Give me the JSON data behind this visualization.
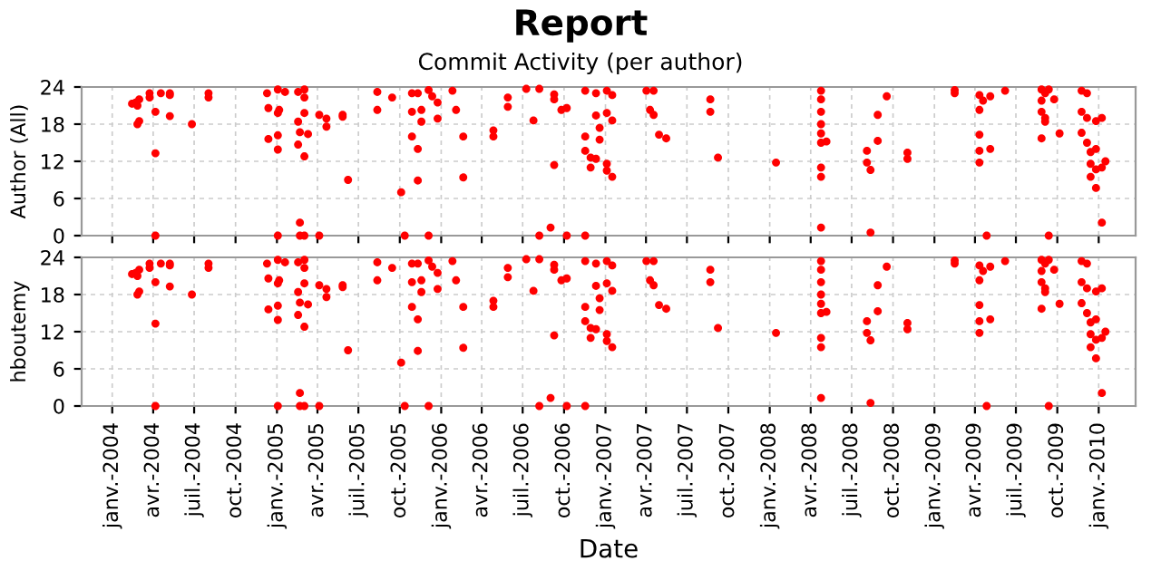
{
  "chart_data": [
    {
      "type": "scatter",
      "title": "Report",
      "subtitle": "Commit Activity (per author)",
      "ylabel": "Author (All)",
      "tick_labels": "y",
      "grid": true,
      "marker": "circle",
      "xlim": [
        "2003-10-25",
        "2010-03-24"
      ],
      "ylim": [
        0,
        24
      ],
      "yticks": [
        0,
        6,
        12,
        18,
        24
      ],
      "xticks": [
        {
          "value": "2004-01",
          "label": null
        },
        {
          "value": "2004-04",
          "label": null
        },
        {
          "value": "2004-07",
          "label": null
        },
        {
          "value": "2004-10",
          "label": null
        },
        {
          "value": "2005-01",
          "label": null
        },
        {
          "value": "2005-04",
          "label": null
        },
        {
          "value": "2005-07",
          "label": null
        },
        {
          "value": "2005-10",
          "label": null
        },
        {
          "value": "2006-01",
          "label": null
        },
        {
          "value": "2006-04",
          "label": null
        },
        {
          "value": "2006-07",
          "label": null
        },
        {
          "value": "2006-10",
          "label": null
        },
        {
          "value": "2007-01",
          "label": null
        },
        {
          "value": "2007-04",
          "label": null
        },
        {
          "value": "2007-07",
          "label": null
        },
        {
          "value": "2007-10",
          "label": null
        },
        {
          "value": "2008-01",
          "label": null
        },
        {
          "value": "2008-04",
          "label": null
        },
        {
          "value": "2008-07",
          "label": null
        },
        {
          "value": "2008-10",
          "label": null
        },
        {
          "value": "2009-01",
          "label": null
        },
        {
          "value": "2009-04",
          "label": null
        },
        {
          "value": "2009-07",
          "label": null
        },
        {
          "value": "2009-10",
          "label": null
        },
        {
          "value": "2010-01",
          "label": null
        }
      ],
      "series": [
        {
          "color": "#ff0000",
          "x": [
            "2004-02-14",
            "2004-02-22",
            "2004-03-01",
            "2004-03-01",
            "2004-02-26",
            "2004-02-26",
            "2004-03-24",
            "2004-03-24",
            "2004-04-06",
            "2004-04-06",
            "2004-04-06",
            "2004-04-18",
            "2004-05-08",
            "2004-05-08",
            "2004-05-08",
            "2004-06-26",
            "2004-08-02",
            "2004-08-02",
            "2004-12-10",
            "2004-12-13",
            "2004-12-13",
            "2005-01-03",
            "2005-01-03",
            "2005-01-03",
            "2005-01-03",
            "2005-01-03",
            "2005-01-06",
            "2005-01-19",
            "2005-02-17",
            "2005-02-17",
            "2005-02-21",
            "2005-02-17",
            "2005-02-21",
            "2005-02-21",
            "2005-03-03",
            "2005-03-03",
            "2005-03-03",
            "2005-03-03",
            "2005-03-03",
            "2005-03-11",
            "2005-04-05",
            "2005-04-05",
            "2005-04-21",
            "2005-04-21",
            "2005-05-27",
            "2005-05-27",
            "2005-06-08",
            "2005-08-12",
            "2005-08-12",
            "2005-09-14",
            "2005-10-04",
            "2005-10-12",
            "2005-10-28",
            "2005-10-28",
            "2005-10-28",
            "2005-11-10",
            "2005-11-10",
            "2005-11-10",
            "2005-11-18",
            "2005-11-18",
            "2005-12-04",
            "2005-12-04",
            "2005-12-12",
            "2005-12-24",
            "2005-12-24",
            "2006-01-26",
            "2006-02-03",
            "2006-02-19",
            "2006-02-19",
            "2006-04-27",
            "2006-04-27",
            "2006-05-29",
            "2006-05-29",
            "2006-07-09",
            "2006-07-25",
            "2006-08-07",
            "2006-08-07",
            "2006-09-01",
            "2006-09-09",
            "2006-09-09",
            "2006-09-09",
            "2006-09-25",
            "2006-10-07",
            "2006-10-07",
            "2006-11-17",
            "2006-11-17",
            "2006-11-17",
            "2006-11-29",
            "2006-11-29",
            "2006-11-17",
            "2006-12-11",
            "2006-12-11",
            "2006-12-19",
            "2006-12-19",
            "2006-12-11",
            "2007-01-04",
            "2007-01-04",
            "2007-01-04",
            "2007-01-16",
            "2007-01-16",
            "2007-01-04",
            "2007-01-16",
            "2007-04-02",
            "2007-04-10",
            "2007-04-18",
            "2007-04-18",
            "2007-04-30",
            "2007-05-16",
            "2007-08-22",
            "2007-08-22",
            "2007-09-08",
            "2008-01-15",
            "2008-04-24",
            "2008-04-24",
            "2008-04-24",
            "2008-04-24",
            "2008-04-24",
            "2008-04-24",
            "2008-04-24",
            "2008-04-24",
            "2008-04-24",
            "2008-05-06",
            "2008-08-04",
            "2008-08-04",
            "2008-08-12",
            "2008-08-12",
            "2008-08-28",
            "2008-08-28",
            "2008-09-17",
            "2008-11-02",
            "2008-11-02",
            "2009-02-15",
            "2009-02-15",
            "2009-04-11",
            "2009-04-19",
            "2009-04-11",
            "2009-04-11",
            "2009-04-11",
            "2009-04-11",
            "2009-04-27",
            "2009-05-05",
            "2009-05-05",
            "2009-06-07",
            "2009-08-27",
            "2009-08-27",
            "2009-08-27",
            "2009-09-04",
            "2009-09-04",
            "2009-09-04",
            "2009-08-27",
            "2009-09-12",
            "2009-09-12",
            "2009-09-24",
            "2009-10-06",
            "2009-11-24",
            "2009-11-24",
            "2009-11-24",
            "2009-12-06",
            "2009-12-06",
            "2009-12-06",
            "2009-12-14",
            "2009-12-14",
            "2009-12-14",
            "2009-12-26",
            "2009-12-26",
            "2009-12-26",
            "2009-12-26",
            "2010-01-08",
            "2010-01-08",
            "2010-01-08",
            "2010-01-16"
          ],
          "values": [
            21.3,
            21.5,
            22,
            18.5,
            18,
            21,
            23,
            22.3,
            13.3,
            20,
            0,
            23,
            23,
            22.7,
            19.3,
            18,
            23,
            22.3,
            23,
            20.6,
            15.6,
            23.6,
            19.8,
            16.2,
            13.9,
            0,
            20.3,
            23.2,
            23.2,
            18.4,
            16.7,
            14.7,
            0,
            2.1,
            23.6,
            22.3,
            19.8,
            12.8,
            0,
            16.4,
            19.5,
            0,
            18.9,
            17.6,
            19.5,
            19.2,
            9,
            23.2,
            20.3,
            22.3,
            7,
            0,
            23,
            20,
            16,
            23,
            14,
            8.9,
            18.4,
            20.3,
            23.5,
            0,
            22.5,
            21.5,
            18.9,
            23.4,
            20.3,
            16,
            9.4,
            17,
            16,
            22.3,
            20.8,
            23.7,
            18.6,
            23.7,
            0,
            1.3,
            22.8,
            22,
            11.4,
            20.3,
            20.6,
            0,
            23.4,
            16,
            13.7,
            12.6,
            11,
            0,
            23,
            19.4,
            17.4,
            15.5,
            12.4,
            23.4,
            19.8,
            11.6,
            22.7,
            18.6,
            10.5,
            9.5,
            23.4,
            20.3,
            23.4,
            19.5,
            16.3,
            15.7,
            22,
            20,
            12.6,
            11.8,
            23.4,
            22,
            20,
            18,
            16.5,
            15,
            11,
            9.5,
            1.3,
            15.2,
            13.7,
            11.8,
            10.6,
            0.5,
            19.5,
            15.3,
            22.5,
            13.4,
            12.4,
            23.5,
            23,
            22.7,
            21.8,
            20.3,
            16.3,
            13.7,
            11.8,
            0,
            14,
            22.5,
            23.4,
            23.6,
            21.8,
            20,
            19,
            23,
            18.4,
            15.7,
            0,
            23.6,
            22,
            16.5,
            23.4,
            20,
            16.6,
            23,
            19,
            15,
            13.5,
            11.6,
            9.5,
            18.5,
            14,
            10.7,
            7.7,
            19,
            11,
            2.1,
            12
          ]
        }
      ]
    },
    {
      "type": "scatter",
      "ylabel": "hboutemy",
      "xlabel": "Date",
      "grid": true,
      "marker": "circle",
      "xlim": [
        "2003-10-25",
        "2010-03-24"
      ],
      "ylim": [
        0,
        24
      ],
      "yticks": [
        0,
        6,
        12,
        18,
        24
      ],
      "xticks": [
        {
          "value": "2004-01",
          "label": "janv.-2004"
        },
        {
          "value": "2004-04",
          "label": "avr.-2004"
        },
        {
          "value": "2004-07",
          "label": "juil.-2004"
        },
        {
          "value": "2004-10",
          "label": "oct.-2004"
        },
        {
          "value": "2005-01",
          "label": "janv.-2005"
        },
        {
          "value": "2005-04",
          "label": "avr.-2005"
        },
        {
          "value": "2005-07",
          "label": "juil.-2005"
        },
        {
          "value": "2005-10",
          "label": "oct.-2005"
        },
        {
          "value": "2006-01",
          "label": "janv.-2006"
        },
        {
          "value": "2006-04",
          "label": "avr.-2006"
        },
        {
          "value": "2006-07",
          "label": "juil.-2006"
        },
        {
          "value": "2006-10",
          "label": "oct.-2006"
        },
        {
          "value": "2007-01",
          "label": "janv.-2007"
        },
        {
          "value": "2007-04",
          "label": "avr.-2007"
        },
        {
          "value": "2007-07",
          "label": "juil.-2007"
        },
        {
          "value": "2007-10",
          "label": "oct.-2007"
        },
        {
          "value": "2008-01",
          "label": "janv.-2008"
        },
        {
          "value": "2008-04",
          "label": "avr.-2008"
        },
        {
          "value": "2008-07",
          "label": "juil.-2008"
        },
        {
          "value": "2008-10",
          "label": "oct.-2008"
        },
        {
          "value": "2009-01",
          "label": "janv.-2009"
        },
        {
          "value": "2009-04",
          "label": "avr.-2009"
        },
        {
          "value": "2009-07",
          "label": "juil.-2009"
        },
        {
          "value": "2009-10",
          "label": "oct.-2009"
        },
        {
          "value": "2010-01",
          "label": "janv.-2010"
        }
      ],
      "series": [
        {
          "color": "#ff0000",
          "x": [
            "2004-02-14",
            "2004-02-22",
            "2004-03-01",
            "2004-03-01",
            "2004-02-26",
            "2004-02-26",
            "2004-03-24",
            "2004-03-24",
            "2004-04-06",
            "2004-04-06",
            "2004-04-06",
            "2004-04-18",
            "2004-05-08",
            "2004-05-08",
            "2004-05-08",
            "2004-06-26",
            "2004-08-02",
            "2004-08-02",
            "2004-12-10",
            "2004-12-13",
            "2004-12-13",
            "2005-01-03",
            "2005-01-03",
            "2005-01-03",
            "2005-01-03",
            "2005-01-03",
            "2005-01-06",
            "2005-01-19",
            "2005-02-17",
            "2005-02-17",
            "2005-02-21",
            "2005-02-17",
            "2005-02-21",
            "2005-02-21",
            "2005-03-03",
            "2005-03-03",
            "2005-03-03",
            "2005-03-03",
            "2005-03-03",
            "2005-03-11",
            "2005-04-05",
            "2005-04-05",
            "2005-04-21",
            "2005-04-21",
            "2005-05-27",
            "2005-05-27",
            "2005-06-08",
            "2005-08-12",
            "2005-08-12",
            "2005-09-14",
            "2005-10-04",
            "2005-10-12",
            "2005-10-28",
            "2005-10-28",
            "2005-10-28",
            "2005-11-10",
            "2005-11-10",
            "2005-11-10",
            "2005-11-18",
            "2005-11-18",
            "2005-12-04",
            "2005-12-04",
            "2005-12-12",
            "2005-12-24",
            "2005-12-24",
            "2006-01-26",
            "2006-02-03",
            "2006-02-19",
            "2006-02-19",
            "2006-04-27",
            "2006-04-27",
            "2006-05-29",
            "2006-05-29",
            "2006-07-09",
            "2006-07-25",
            "2006-08-07",
            "2006-08-07",
            "2006-09-01",
            "2006-09-09",
            "2006-09-09",
            "2006-09-09",
            "2006-09-25",
            "2006-10-07",
            "2006-10-07",
            "2006-11-17",
            "2006-11-17",
            "2006-11-17",
            "2006-11-29",
            "2006-11-29",
            "2006-11-17",
            "2006-12-11",
            "2006-12-11",
            "2006-12-19",
            "2006-12-19",
            "2006-12-11",
            "2007-01-04",
            "2007-01-04",
            "2007-01-04",
            "2007-01-16",
            "2007-01-16",
            "2007-01-04",
            "2007-01-16",
            "2007-04-02",
            "2007-04-10",
            "2007-04-18",
            "2007-04-18",
            "2007-04-30",
            "2007-05-16",
            "2007-08-22",
            "2007-08-22",
            "2007-09-08",
            "2008-01-15",
            "2008-04-24",
            "2008-04-24",
            "2008-04-24",
            "2008-04-24",
            "2008-04-24",
            "2008-04-24",
            "2008-04-24",
            "2008-04-24",
            "2008-04-24",
            "2008-05-06",
            "2008-08-04",
            "2008-08-04",
            "2008-08-12",
            "2008-08-12",
            "2008-08-28",
            "2008-08-28",
            "2008-09-17",
            "2008-11-02",
            "2008-11-02",
            "2009-02-15",
            "2009-02-15",
            "2009-04-11",
            "2009-04-19",
            "2009-04-11",
            "2009-04-11",
            "2009-04-11",
            "2009-04-11",
            "2009-04-27",
            "2009-05-05",
            "2009-05-05",
            "2009-06-07",
            "2009-08-27",
            "2009-08-27",
            "2009-08-27",
            "2009-09-04",
            "2009-09-04",
            "2009-09-04",
            "2009-08-27",
            "2009-09-12",
            "2009-09-12",
            "2009-09-24",
            "2009-10-06",
            "2009-11-24",
            "2009-11-24",
            "2009-11-24",
            "2009-12-06",
            "2009-12-06",
            "2009-12-06",
            "2009-12-14",
            "2009-12-14",
            "2009-12-14",
            "2009-12-26",
            "2009-12-26",
            "2009-12-26",
            "2009-12-26",
            "2010-01-08",
            "2010-01-08",
            "2010-01-08",
            "2010-01-16"
          ],
          "values": [
            21.3,
            21.5,
            22,
            18.5,
            18,
            21,
            23,
            22.3,
            13.3,
            20,
            0,
            23,
            23,
            22.7,
            19.3,
            18,
            23,
            22.3,
            23,
            20.6,
            15.6,
            23.6,
            19.8,
            16.2,
            13.9,
            0,
            20.3,
            23.2,
            23.2,
            18.4,
            16.7,
            14.7,
            0,
            2.1,
            23.6,
            22.3,
            19.8,
            12.8,
            0,
            16.4,
            19.5,
            0,
            18.9,
            17.6,
            19.5,
            19.2,
            9,
            23.2,
            20.3,
            22.3,
            7,
            0,
            23,
            20,
            16,
            23,
            14,
            8.9,
            18.4,
            20.3,
            23.5,
            0,
            22.5,
            21.5,
            18.9,
            23.4,
            20.3,
            16,
            9.4,
            17,
            16,
            22.3,
            20.8,
            23.7,
            18.6,
            23.7,
            0,
            1.3,
            22.8,
            22,
            11.4,
            20.3,
            20.6,
            0,
            23.4,
            16,
            13.7,
            12.6,
            11,
            0,
            23,
            19.4,
            17.4,
            15.5,
            12.4,
            23.4,
            19.8,
            11.6,
            22.7,
            18.6,
            10.5,
            9.5,
            23.4,
            20.3,
            23.4,
            19.5,
            16.3,
            15.7,
            22,
            20,
            12.6,
            11.8,
            23.4,
            22,
            20,
            18,
            16.5,
            15,
            11,
            9.5,
            1.3,
            15.2,
            13.7,
            11.8,
            10.6,
            0.5,
            19.5,
            15.3,
            22.5,
            13.4,
            12.4,
            23.5,
            23,
            22.7,
            21.8,
            20.3,
            16.3,
            13.7,
            11.8,
            0,
            14,
            22.5,
            23.4,
            23.6,
            21.8,
            20,
            19,
            23,
            18.4,
            15.7,
            0,
            23.6,
            22,
            16.5,
            23.4,
            20,
            16.6,
            23,
            19,
            15,
            13.5,
            11.6,
            9.5,
            18.5,
            14,
            10.7,
            7.7,
            19,
            11,
            2.1,
            12
          ]
        }
      ]
    }
  ]
}
